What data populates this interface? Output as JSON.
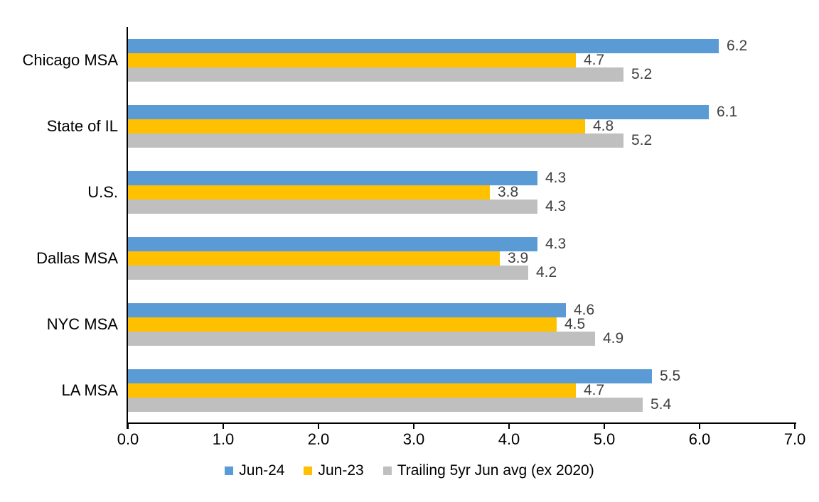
{
  "chart_data": {
    "type": "bar",
    "orientation": "horizontal",
    "title": "",
    "xlabel": "",
    "ylabel": "",
    "categories": [
      "Chicago MSA",
      "State of IL",
      "U.S.",
      "Dallas MSA",
      "NYC MSA",
      "LA MSA"
    ],
    "series": [
      {
        "name": "Jun-24",
        "color": "#5B9BD5",
        "values": [
          6.2,
          6.1,
          4.3,
          4.3,
          4.6,
          5.5
        ]
      },
      {
        "name": "Jun-23",
        "color": "#FFC000",
        "values": [
          4.7,
          4.8,
          3.8,
          3.9,
          4.5,
          4.7
        ]
      },
      {
        "name": "Trailing 5yr Jun avg (ex 2020)",
        "color": "#BFBFBF",
        "values": [
          5.2,
          5.2,
          4.3,
          4.2,
          4.9,
          5.4
        ]
      }
    ],
    "xlim": [
      0,
      7
    ],
    "tick_values": [
      0,
      1,
      2,
      3,
      4,
      5,
      6,
      7
    ],
    "tick_labels": [
      "0.0",
      "1.0",
      "2.0",
      "3.0",
      "4.0",
      "5.0",
      "6.0",
      "7.0"
    ],
    "data_labels": true,
    "data_label_decimals": 1,
    "grid": false,
    "legend_position": "bottom",
    "colors": {
      "axis": "#000000",
      "data_label_text": "#404040",
      "category_text": "#000000",
      "background": "#FFFFFF"
    }
  }
}
